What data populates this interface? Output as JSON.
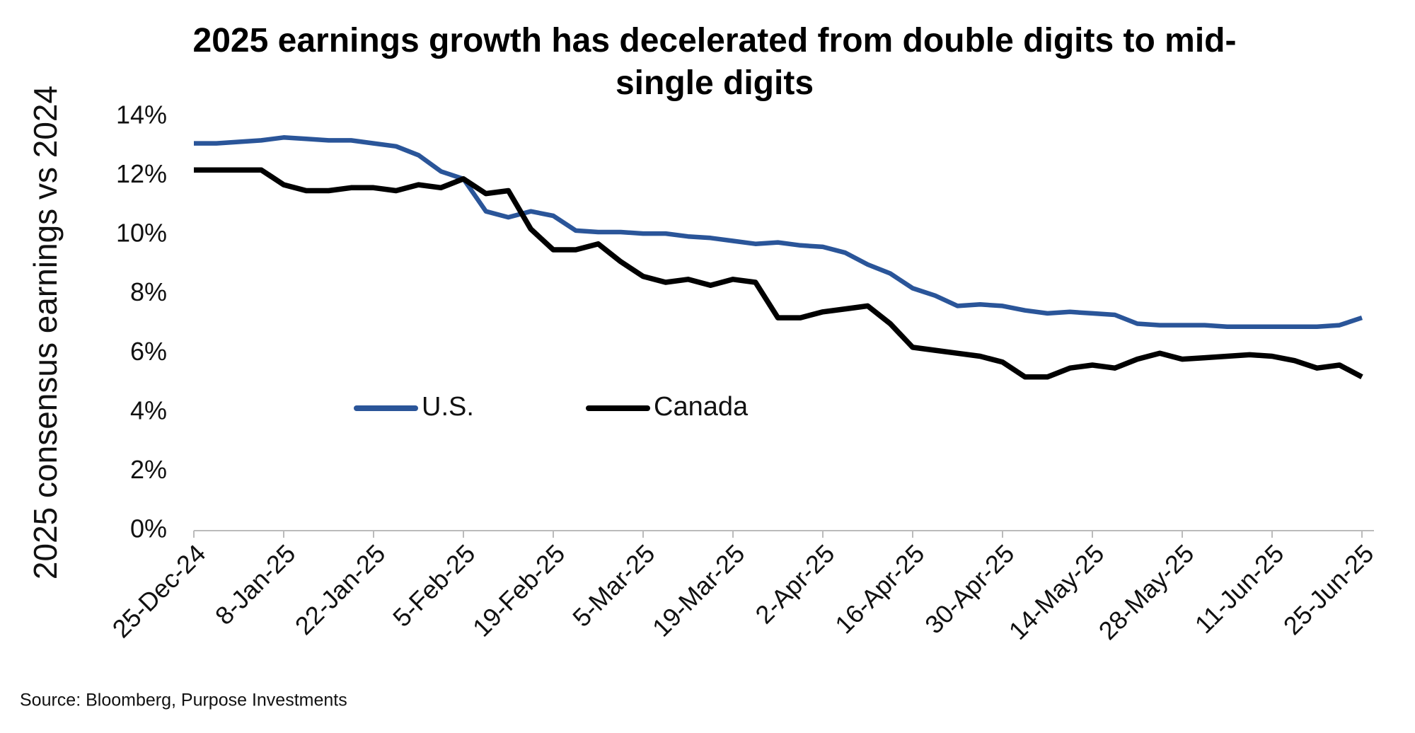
{
  "chart_data": {
    "type": "line",
    "title": "2025 earnings growth has decelerated from double digits to mid-single digits",
    "y_label": "2025 consensus earnings vs 2024",
    "source": "Source: Bloomberg, Purpose Investments",
    "categories": [
      "25-Dec-24",
      null,
      null,
      null,
      "8-Jan-25",
      null,
      null,
      null,
      "22-Jan-25",
      null,
      null,
      null,
      "5-Feb-25",
      null,
      null,
      null,
      "19-Feb-25",
      null,
      null,
      null,
      "5-Mar-25",
      null,
      null,
      null,
      "19-Mar-25",
      null,
      null,
      null,
      "2-Apr-25",
      null,
      null,
      null,
      "16-Apr-25",
      null,
      null,
      null,
      "30-Apr-25",
      null,
      null,
      null,
      "14-May-25",
      null,
      null,
      null,
      "28-May-25",
      null,
      null,
      null,
      "11-Jun-25",
      null,
      null,
      null,
      "25-Jun-25"
    ],
    "series": [
      {
        "name": "U.S.",
        "color": "#2a5599",
        "values": [
          13.1,
          13.1,
          13.15,
          13.2,
          13.3,
          13.25,
          13.2,
          13.2,
          13.1,
          13.0,
          12.7,
          12.15,
          11.9,
          10.8,
          10.6,
          10.8,
          10.65,
          10.15,
          10.1,
          10.1,
          10.05,
          10.05,
          9.95,
          9.9,
          9.8,
          9.7,
          9.75,
          9.65,
          9.6,
          9.4,
          9.0,
          8.7,
          8.2,
          7.95,
          7.6,
          7.65,
          7.6,
          7.45,
          7.35,
          7.4,
          7.35,
          7.3,
          7.0,
          6.95,
          6.95,
          6.95,
          6.9,
          6.9,
          6.9,
          6.9,
          6.9,
          6.95,
          7.2
        ]
      },
      {
        "name": "Canada",
        "color": "#000000",
        "values": [
          12.2,
          12.2,
          12.2,
          12.2,
          11.7,
          11.5,
          11.5,
          11.6,
          11.6,
          11.5,
          11.7,
          11.6,
          11.9,
          11.4,
          11.5,
          10.2,
          9.5,
          9.5,
          9.7,
          9.1,
          8.6,
          8.4,
          8.5,
          8.3,
          8.5,
          8.4,
          7.2,
          7.2,
          7.4,
          7.5,
          7.6,
          7.0,
          6.2,
          6.1,
          6.0,
          5.9,
          5.7,
          5.2,
          5.2,
          5.5,
          5.6,
          5.5,
          5.8,
          6.0,
          5.8,
          5.85,
          5.9,
          5.95,
          5.9,
          5.75,
          5.5,
          5.6,
          5.2
        ]
      }
    ],
    "ylim": [
      0,
      14
    ],
    "yticks": [
      {
        "value": 0,
        "label": "0%"
      },
      {
        "value": 2,
        "label": "2%"
      },
      {
        "value": 4,
        "label": "4%"
      },
      {
        "value": 6,
        "label": "6%"
      },
      {
        "value": 8,
        "label": "8%"
      },
      {
        "value": 10,
        "label": "10%"
      },
      {
        "value": 12,
        "label": "12%"
      },
      {
        "value": 14,
        "label": "14%"
      }
    ],
    "grid": false,
    "legend": "center"
  }
}
